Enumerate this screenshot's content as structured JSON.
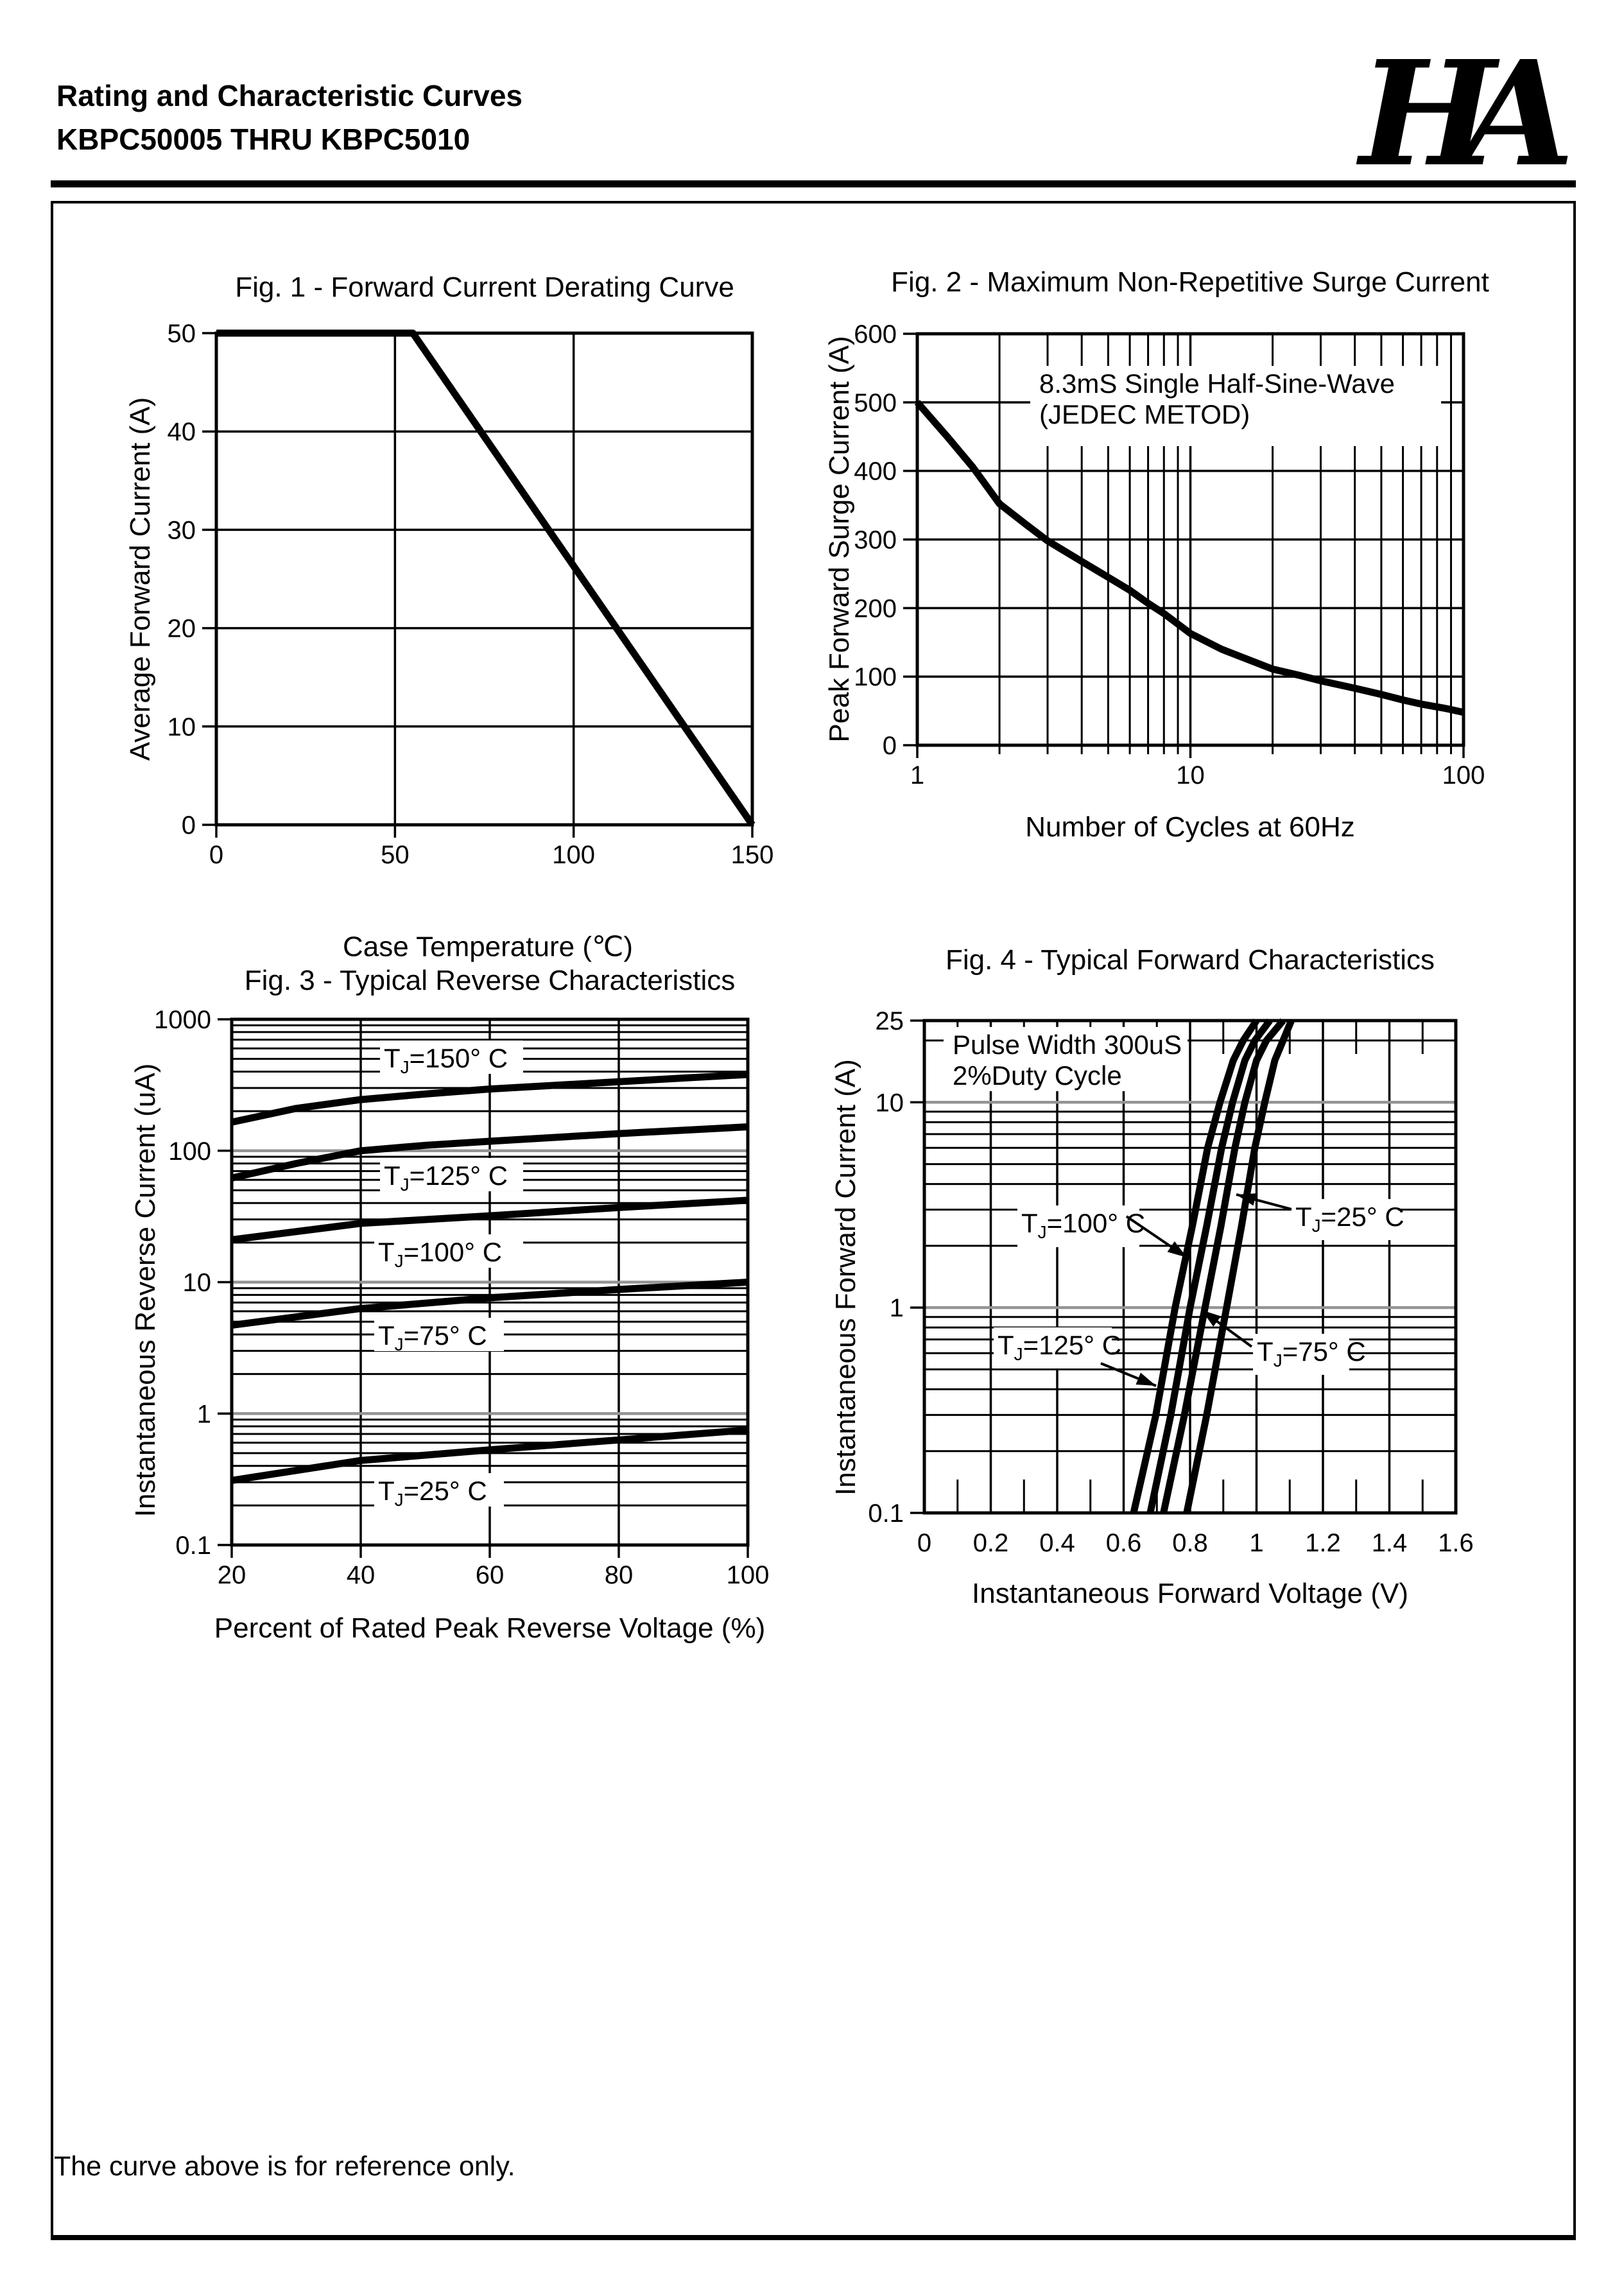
{
  "header": {
    "title_line1": "Rating and Characteristic Curves",
    "title_line2": "KBPC50005 THRU KBPC5010",
    "logo_text": "HA"
  },
  "footer": {
    "note": "The curve above is for reference only."
  },
  "colors": {
    "ink": "#000000",
    "grid_major_gray": "#949494",
    "background": "#ffffff"
  },
  "chart_data": [
    {
      "id": "fig1",
      "type": "line",
      "title": "Fig. 1 - Forward Current Derating Curve",
      "xlabel": "Case Temperature (℃)",
      "ylabel": "Average Forward Current (A)",
      "x_scale": "linear",
      "y_scale": "linear",
      "xlim": [
        0,
        150
      ],
      "ylim": [
        0,
        50
      ],
      "x_ticks": [
        0,
        50,
        100,
        150
      ],
      "y_ticks": [
        0,
        10,
        20,
        30,
        40,
        50
      ],
      "grid": "major-on",
      "legend": "none",
      "series": [
        {
          "name": "forward-current-derating",
          "points": [
            [
              0,
              50
            ],
            [
              55,
              50
            ],
            [
              150,
              0
            ]
          ]
        }
      ],
      "textboxes": []
    },
    {
      "id": "fig2",
      "type": "line",
      "title": "Fig. 2 - Maximum Non-Repetitive Surge Current",
      "xlabel": "Number of Cycles at 60Hz",
      "ylabel": "Peak Forward Surge Current (A)",
      "x_scale": "log",
      "y_scale": "linear",
      "xlim": [
        1,
        100
      ],
      "ylim": [
        0,
        600
      ],
      "x_ticks": [
        1,
        10,
        100
      ],
      "y_ticks": [
        0,
        100,
        200,
        300,
        400,
        500,
        600
      ],
      "grid": "major-and-log-minor-on",
      "legend": "none",
      "series": [
        {
          "name": "peak-surge-current",
          "points": [
            [
              1,
              500
            ],
            [
              1.3,
              448
            ],
            [
              1.6,
              405
            ],
            [
              2,
              352
            ],
            [
              2.5,
              322
            ],
            [
              3,
              298
            ],
            [
              4,
              268
            ],
            [
              5,
              245
            ],
            [
              6,
              226
            ],
            [
              7,
              207
            ],
            [
              8,
              192
            ],
            [
              10,
              163
            ],
            [
              13,
              140
            ],
            [
              16,
              126
            ],
            [
              20,
              111
            ],
            [
              25,
              102
            ],
            [
              30,
              94
            ],
            [
              40,
              83
            ],
            [
              50,
              74
            ],
            [
              60,
              66
            ],
            [
              70,
              60
            ],
            [
              85,
              54
            ],
            [
              100,
              48
            ]
          ]
        }
      ],
      "textboxes": [
        {
          "lines": [
            "8.3mS Single Half-Sine-Wave",
            "(JEDEC METOD)"
          ],
          "box": [
            0.2068,
            0.078,
            0.9589,
            0.273
          ]
        }
      ]
    },
    {
      "id": "fig3",
      "type": "line",
      "title": "Fig. 3 - Typical Reverse Characteristics",
      "xlabel": "Percent of Rated Peak Reverse Voltage (%)",
      "ylabel": "Instantaneous Reverse Current (uA)",
      "x_scale": "linear",
      "y_scale": "log",
      "xlim": [
        20,
        100
      ],
      "ylim": [
        0.1,
        1000
      ],
      "x_ticks": [
        20,
        40,
        60,
        80,
        100
      ],
      "y_ticks": [
        0.1,
        1,
        10,
        100,
        1000
      ],
      "grid": "major-gray-and-log-minor-on",
      "legend": "inline-labels",
      "series": [
        {
          "name": "TJ=150C",
          "points": [
            [
              20,
              165
            ],
            [
              30,
              210
            ],
            [
              40,
              245
            ],
            [
              50,
              270
            ],
            [
              60,
              295
            ],
            [
              80,
              335
            ],
            [
              100,
              380
            ]
          ],
          "label": {
            "parts": [
              "T",
              "J",
              "=150° C"
            ],
            "box": [
              0.2873,
              0.0403,
              0.5647,
              0.1038
            ]
          }
        },
        {
          "name": "TJ=125C",
          "points": [
            [
              20,
              62
            ],
            [
              30,
              80
            ],
            [
              40,
              100
            ],
            [
              50,
              110
            ],
            [
              60,
              118
            ],
            [
              80,
              135
            ],
            [
              100,
              152
            ]
          ],
          "label": {
            "parts": [
              "T",
              "J",
              "=125° C"
            ],
            "box": [
              0.2873,
              0.2638,
              0.5647,
              0.3272
            ]
          }
        },
        {
          "name": "TJ=100C",
          "points": [
            [
              20,
              21
            ],
            [
              40,
              28
            ],
            [
              60,
              32
            ],
            [
              80,
              37
            ],
            [
              100,
              42
            ]
          ],
          "label": {
            "parts": [
              "T",
              "J",
              "=100° C"
            ],
            "box": [
              0.2761,
              0.4091,
              0.5647,
              0.4726
            ]
          }
        },
        {
          "name": "TJ=75C",
          "points": [
            [
              20,
              4.7
            ],
            [
              40,
              6.3
            ],
            [
              60,
              7.6
            ],
            [
              80,
              8.8
            ],
            [
              100,
              10
            ]
          ],
          "label": {
            "parts": [
              "T",
              "J",
              "=75° C"
            ],
            "box": [
              0.2761,
              0.5678,
              0.5274,
              0.6313
            ]
          }
        },
        {
          "name": "TJ=25C",
          "points": [
            [
              20,
              0.31
            ],
            [
              40,
              0.44
            ],
            [
              60,
              0.53
            ],
            [
              80,
              0.63
            ],
            [
              100,
              0.75
            ]
          ],
          "label": {
            "parts": [
              "T",
              "J",
              "=25° C"
            ],
            "box": [
              0.2761,
              0.8633,
              0.5274,
              0.9268
            ]
          }
        }
      ],
      "textboxes": []
    },
    {
      "id": "fig4",
      "type": "line",
      "title": "Fig. 4 - Typical Forward Characteristics",
      "xlabel": "Instantaneous Forward Voltage (V)",
      "ylabel": "Instantaneous Forward Current (A)",
      "x_scale": "linear",
      "y_scale": "log",
      "xlim": [
        0,
        1.6
      ],
      "ylim": [
        0.1,
        25
      ],
      "x_ticks": [
        0,
        0.2,
        0.4,
        0.6,
        0.8,
        1,
        1.2,
        1.4,
        1.6
      ],
      "y_ticks": [
        0.1,
        1,
        10,
        25
      ],
      "grid": "major-gray-and-log-minor-on",
      "legend": "inline-labels-with-arrows",
      "series": [
        {
          "name": "TJ=125C",
          "points": [
            [
              0.63,
              0.1
            ],
            [
              0.697,
              0.3
            ],
            [
              0.755,
              1
            ],
            [
              0.807,
              2.5
            ],
            [
              0.853,
              6
            ],
            [
              0.89,
              10
            ],
            [
              0.93,
              16
            ],
            [
              0.96,
              20
            ],
            [
              1.0,
              25
            ]
          ],
          "label": {
            "parts": [
              "T",
              "J",
              "=125° C"
            ],
            "box": [
              0.1304,
              0.6232,
              0.3527,
              0.7066
            ],
            "arrow": {
              "from": [
                0.3321,
                0.6962
              ],
              "to": [
                0.436,
                0.7419
              ]
            }
          }
        },
        {
          "name": "TJ=100C",
          "points": [
            [
              0.68,
              0.1
            ],
            [
              0.742,
              0.3
            ],
            [
              0.8,
              1
            ],
            [
              0.85,
              2.5
            ],
            [
              0.895,
              6
            ],
            [
              0.928,
              10
            ],
            [
              0.965,
              16
            ],
            [
              0.995,
              20
            ],
            [
              1.04,
              25
            ]
          ],
          "label": {
            "parts": [
              "T",
              "J",
              "=100° C"
            ],
            "box": [
              0.1751,
              0.3755,
              0.4046,
              0.4602
            ],
            "arrow": {
              "from": [
                0.3804,
                0.3977
              ],
              "to": [
                0.494,
                0.4811
              ]
            }
          }
        },
        {
          "name": "TJ=75C",
          "points": [
            [
              0.72,
              0.1
            ],
            [
              0.783,
              0.3
            ],
            [
              0.845,
              1
            ],
            [
              0.893,
              2.5
            ],
            [
              0.935,
              6
            ],
            [
              0.965,
              10
            ],
            [
              1.0,
              16
            ],
            [
              1.03,
              20
            ],
            [
              1.08,
              25
            ]
          ],
          "label": {
            "parts": [
              "T",
              "J",
              "=75° C"
            ],
            "box": [
              0.6184,
              0.6362,
              0.7995,
              0.7196
            ],
            "arrow": {
              "from": [
                0.6159,
                0.6623
              ],
              "to": [
                0.5217,
                0.588
              ]
            }
          }
        },
        {
          "name": "TJ=25C",
          "points": [
            [
              0.79,
              0.1
            ],
            [
              0.85,
              0.3
            ],
            [
              0.91,
              1
            ],
            [
              0.955,
              2.5
            ],
            [
              0.995,
              6
            ],
            [
              1.025,
              10
            ],
            [
              1.055,
              16
            ],
            [
              1.08,
              20
            ],
            [
              1.105,
              25
            ]
          ],
          "label": {
            "parts": [
              "T",
              "J",
              "=25° C"
            ],
            "box": [
              0.6908,
              0.3625,
              0.8913,
              0.4459
            ],
            "arrow": {
              "from": [
                0.6908,
                0.3833
              ],
              "to": [
                0.587,
                0.3533
              ]
            }
          }
        }
      ],
      "textboxes": [
        {
          "lines": [
            "Pulse Width 300uS",
            "2%Duty Cycle"
          ],
          "box": [
            0.0362,
            0.013,
            0.4952,
            0.1434
          ]
        }
      ]
    }
  ]
}
